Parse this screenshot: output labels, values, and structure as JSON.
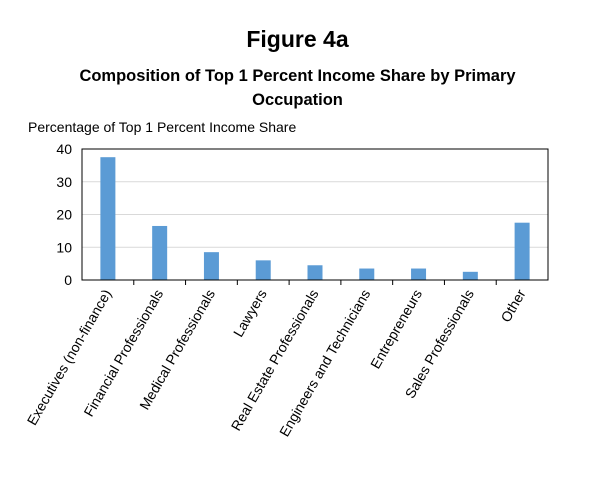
{
  "figure": {
    "label": "Figure 4a",
    "title": "Composition of Top 1 Percent Income Share by Primary Occupation"
  },
  "chart_data": {
    "type": "bar",
    "title": "Composition of Top 1 Percent Income Share by Primary Occupation",
    "ylabel": "Percentage of Top 1 Percent Income Share",
    "xlabel": "",
    "ylim": [
      0,
      40
    ],
    "yticks": [
      0,
      10,
      20,
      30,
      40
    ],
    "grid": true,
    "legend": "none",
    "bar_color": "#5B9BD5",
    "categories": [
      "Executives (non-finance)",
      "Financial Professionals",
      "Medical Professionals",
      "Lawyers",
      "Real Estate Professionals",
      "Engineers and Technicians",
      "Entrepreneurs",
      "Sales Professionals",
      "Other"
    ],
    "values": [
      37.5,
      16.5,
      8.5,
      6,
      4.5,
      3.5,
      3.5,
      2.5,
      17.5
    ]
  }
}
